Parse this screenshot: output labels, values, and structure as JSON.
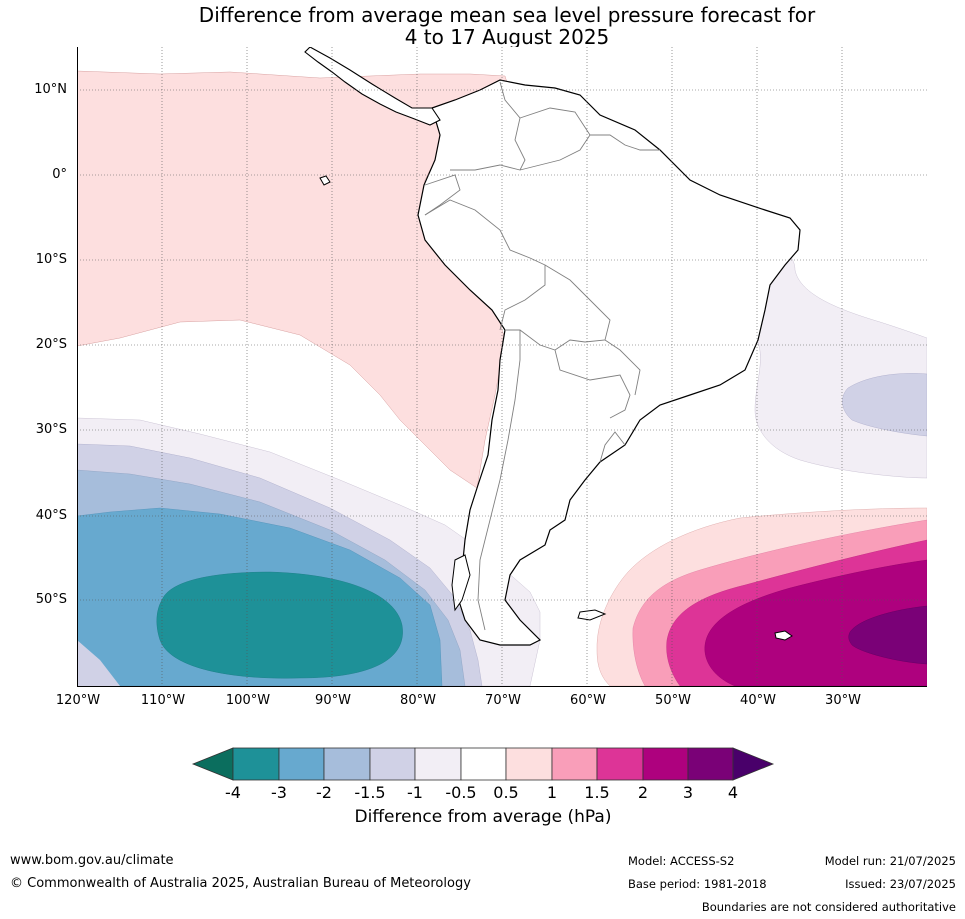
{
  "title": {
    "line1": "Difference from average mean sea level pressure forecast for",
    "line2": "4 to 17 August 2025"
  },
  "map": {
    "lat_labels": [
      "10°N",
      "0°",
      "10°S",
      "20°S",
      "30°S",
      "40°S",
      "50°S"
    ],
    "lon_labels": [
      "120°W",
      "110°W",
      "100°W",
      "90°W",
      "80°W",
      "70°W",
      "60°W",
      "50°W",
      "40°W",
      "30°W"
    ],
    "colors": {
      "land_border": "#000000",
      "country_border": "#808080",
      "grid": "#555555"
    }
  },
  "colorbar": {
    "ticks": [
      "-4",
      "-3",
      "-2",
      "-1.5",
      "-1",
      "-0.5",
      "0.5",
      "1",
      "1.5",
      "2",
      "3",
      "4"
    ],
    "label": "Difference from average (hPa)",
    "colors": [
      "#0b6e5e",
      "#1e9198",
      "#67a9cf",
      "#a6bddb",
      "#d0d1e6",
      "#f2eef5",
      "#ffffff",
      "#fddfdf",
      "#f99eb9",
      "#dd3497",
      "#ae017e",
      "#7a0177",
      "#49006a"
    ]
  },
  "footer": {
    "website": "www.bom.gov.au/climate",
    "copyright": "© Commonwealth of Australia 2025, Australian Bureau of Meteorology",
    "model": "Model: ACCESS-S2",
    "base_period": "Base period: 1981-2018",
    "model_run": "Model run: 21/07/2025",
    "issued": "Issued: 23/07/2025",
    "disclaimer": "Boundaries are not considered authoritative"
  }
}
